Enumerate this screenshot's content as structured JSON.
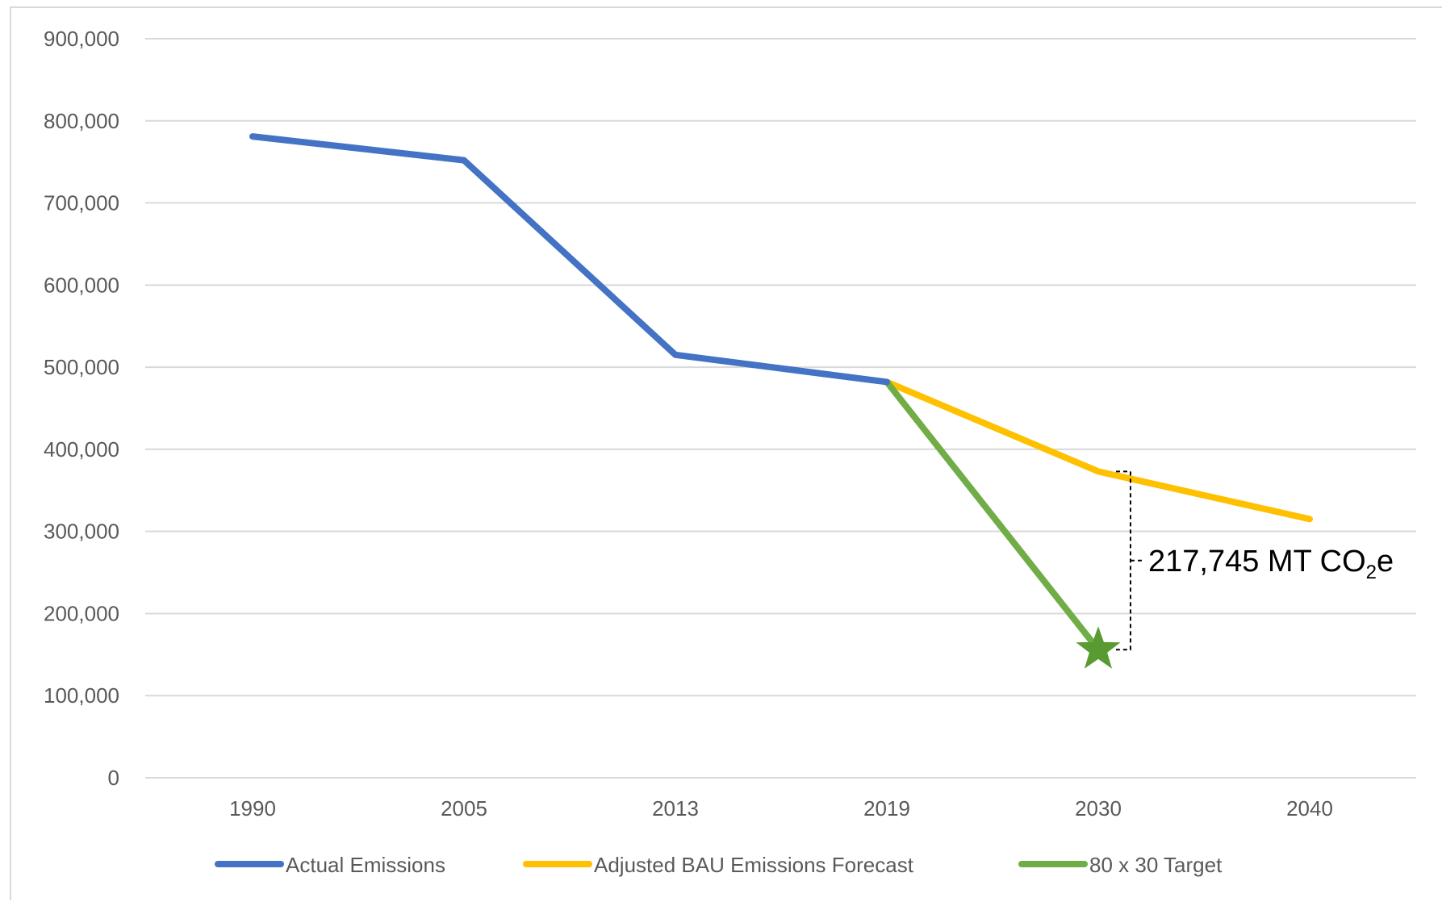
{
  "chart_data": {
    "type": "line",
    "title": "",
    "xlabel": "",
    "ylabel": "",
    "categories": [
      "1990",
      "2005",
      "2013",
      "2019",
      "2030",
      "2040"
    ],
    "ylim": [
      0,
      900000
    ],
    "y_ticks": [
      "900,000",
      "800,000",
      "700,000",
      "600,000",
      "500,000",
      "400,000",
      "300,000",
      "200,000",
      "100,000",
      "0"
    ],
    "y_tick_values": [
      900000,
      800000,
      700000,
      600000,
      500000,
      400000,
      300000,
      200000,
      100000,
      0
    ],
    "grid": true,
    "legend_position": "bottom",
    "series": [
      {
        "name": "Actual Emissions",
        "color": "#4472c4",
        "points": [
          [
            "1990",
            781000
          ],
          [
            "2005",
            752000
          ],
          [
            "2013",
            515000
          ],
          [
            "2019",
            482000
          ]
        ]
      },
      {
        "name": "Adjusted BAU Emissions Forecast",
        "color": "#ffc000",
        "points": [
          [
            "2019",
            482000
          ],
          [
            "2030",
            373000
          ],
          [
            "2040",
            315000
          ]
        ]
      },
      {
        "name": "80 x 30 Target",
        "color": "#70ad47",
        "points": [
          [
            "2019",
            482000
          ],
          [
            "2030",
            156000
          ]
        ],
        "end_marker": "star",
        "marker_color": "#5a9a32"
      }
    ],
    "annotation": {
      "text_main": "217,745 MT CO",
      "text_sub": "2",
      "text_suffix": "e",
      "x": "2030",
      "y_top": 373000,
      "y_bottom": 156000
    }
  }
}
